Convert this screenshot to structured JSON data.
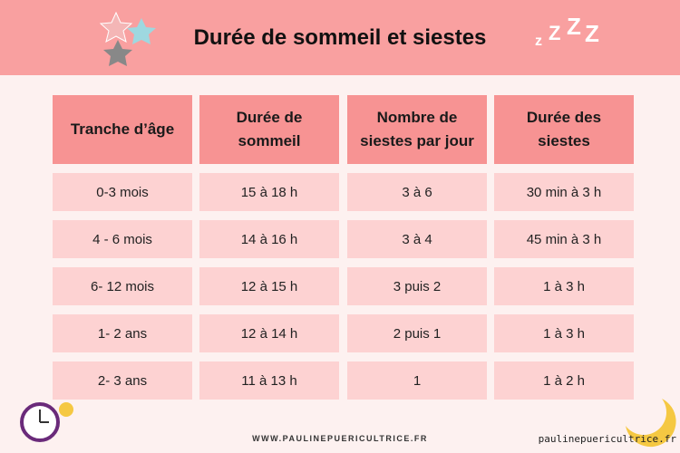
{
  "header": {
    "title": "Durée de sommeil et siestes"
  },
  "table": {
    "columns": [
      [
        "Tranche d’âge"
      ],
      [
        "Durée de",
        "sommeil"
      ],
      [
        "Nombre de",
        "siestes par jour"
      ],
      [
        "Durée des",
        "siestes"
      ]
    ],
    "rows": [
      [
        "0-3 mois",
        "15 à 18 h",
        "3 à 6",
        "30 min à 3 h"
      ],
      [
        "4 - 6 mois",
        "14 à 16 h",
        "3 à 4",
        "45 min à 3 h"
      ],
      [
        "6- 12 mois",
        "12 à 15 h",
        "3 puis 2",
        "1 à 3 h"
      ],
      [
        "1- 2 ans",
        "12 à 14 h",
        "2 puis 1",
        "1 à 3 h"
      ],
      [
        "2- 3 ans",
        "11 à 13 h",
        "1",
        "1 à 2 h"
      ]
    ]
  },
  "footer": {
    "website": "WWW.PAULINEPUERICULTRICE.FR",
    "watermark": "paulinepuericultrice.fr"
  }
}
